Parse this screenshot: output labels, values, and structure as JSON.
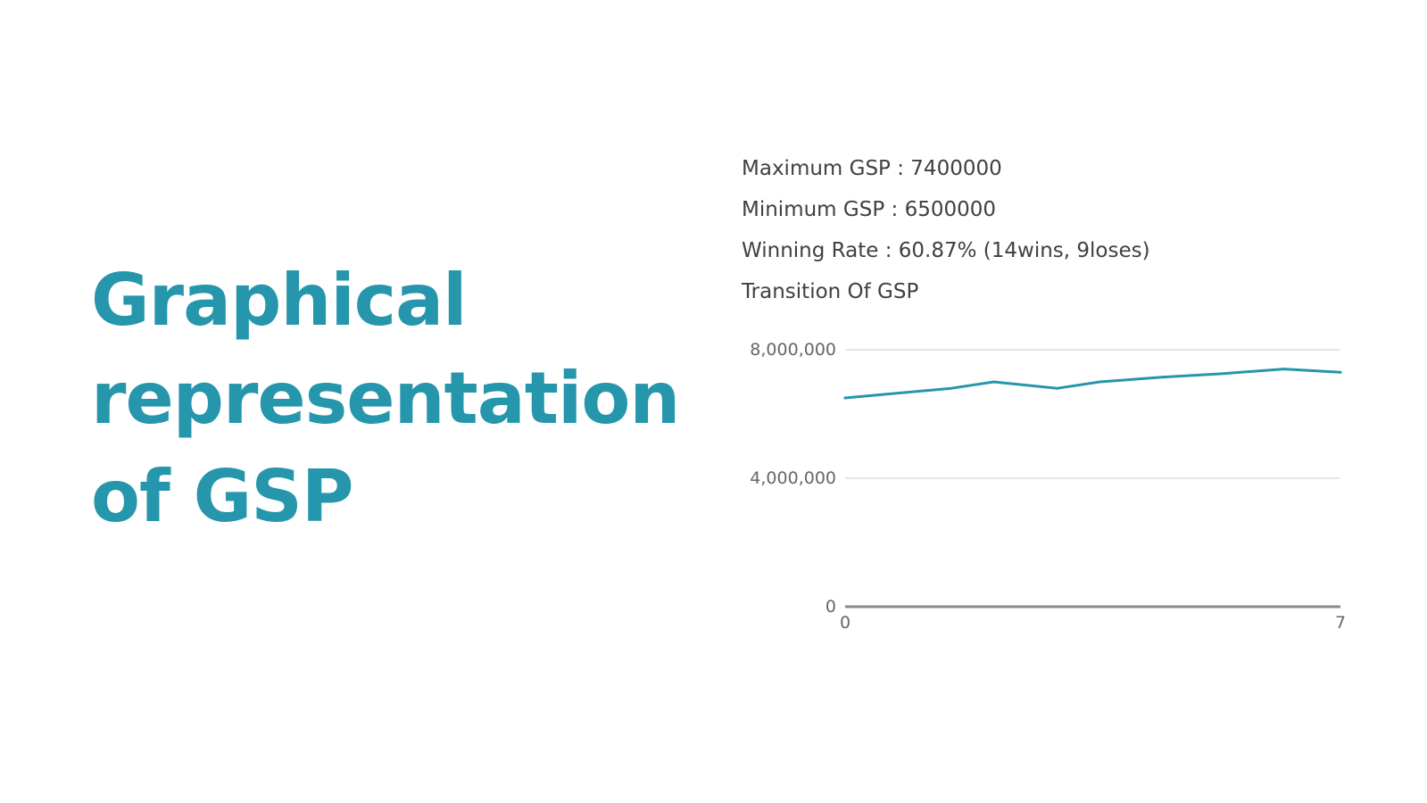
{
  "headline": [
    "Graphical",
    "representation",
    "of GSP"
  ],
  "colors": {
    "accent": "#2596ab",
    "text": "#404040",
    "grid": "#e6e6e6",
    "axis": "#8a8a8a"
  },
  "stats": {
    "max": "Maximum GSP : 7400000",
    "min": "Minimum GSP : 6500000",
    "winning": "Winning Rate : 60.87% (14wins, 9loses)",
    "chart_title": "Transition Of GSP"
  },
  "chart_data": {
    "type": "line",
    "title": "Transition Of GSP",
    "xlabel": "",
    "ylabel": "",
    "xlim": [
      0,
      7
    ],
    "ylim": [
      0,
      8000000
    ],
    "x_ticks": [
      0,
      7
    ],
    "y_ticks": [
      0,
      4000000,
      8000000
    ],
    "y_tick_labels": [
      "0",
      "4,000,000",
      "8,000,000"
    ],
    "x_tick_labels": [
      "0",
      "7"
    ],
    "grid": true,
    "series": [
      {
        "x": [
          0,
          1.5,
          2.1,
          3,
          3.6,
          4.5,
          5.3,
          6.2,
          7
        ],
        "values": [
          6500000,
          6800000,
          7000000,
          6800000,
          7000000,
          7150000,
          7250000,
          7400000,
          7300000
        ]
      }
    ]
  }
}
